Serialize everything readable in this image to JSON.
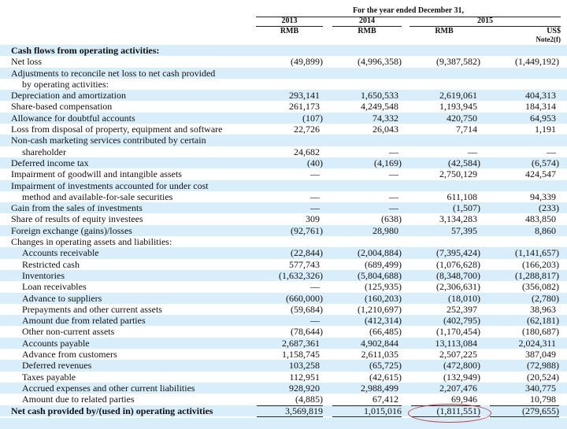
{
  "header": {
    "period": "For the year ended December 31,",
    "years": [
      "2013",
      "2014",
      "2015"
    ],
    "currencies": [
      "RMB",
      "RMB",
      "RMB",
      "US$"
    ],
    "note": "Note2(f)"
  },
  "rows": [
    {
      "label": "Cash flows from operating activities:",
      "bold": true,
      "values": []
    },
    {
      "label": "Net loss",
      "values": [
        "(49,899)",
        "(4,996,358)",
        "(9,387,582)",
        "(1,449,192)"
      ]
    },
    {
      "label": "Adjustments to reconcile net loss to net cash provided",
      "values": []
    },
    {
      "label": "by operating activities:",
      "indent": true,
      "cont": true,
      "values": []
    },
    {
      "label": "Depreciation and amortization",
      "values": [
        "293,141",
        "1,650,533",
        "2,619,061",
        "404,313"
      ]
    },
    {
      "label": "Share-based compensation",
      "values": [
        "261,173",
        "4,249,548",
        "1,193,945",
        "184,314"
      ]
    },
    {
      "label": "Allowance for doubtful accounts",
      "values": [
        "(107)",
        "74,332",
        "420,750",
        "64,953"
      ]
    },
    {
      "label": "Loss from disposal of property, equipment and software",
      "values": [
        "22,726",
        "26,043",
        "7,714",
        "1,191"
      ]
    },
    {
      "label": "Non-cash marketing services contributed by certain",
      "values": []
    },
    {
      "label": "shareholder",
      "indent": true,
      "cont": true,
      "values": [
        "24,682",
        "—",
        "—",
        "—"
      ]
    },
    {
      "label": "Deferred income tax",
      "values": [
        "(40)",
        "(4,169)",
        "(42,584)",
        "(6,574)"
      ]
    },
    {
      "label": "Impairment of goodwill and intangible assets",
      "values": [
        "—",
        "—",
        "2,750,129",
        "424,547"
      ]
    },
    {
      "label": "Impairment of investments accounted for under cost",
      "values": []
    },
    {
      "label": "method and available-for-sale securities",
      "indent": true,
      "cont": true,
      "values": [
        "—",
        "—",
        "611,108",
        "94,339"
      ]
    },
    {
      "label": "Gain from the sales of investments",
      "values": [
        "—",
        "—",
        "(1,507)",
        "(233)"
      ]
    },
    {
      "label": "Share of results of equity investees",
      "values": [
        "309",
        "(638)",
        "3,134,283",
        "483,850"
      ]
    },
    {
      "label": "Foreign exchange (gains)/losses",
      "values": [
        "(92,761)",
        "28,980",
        "57,395",
        "8,860"
      ]
    },
    {
      "label": "Changes in operating assets and liabilities:",
      "values": []
    },
    {
      "label": "Accounts receivable",
      "indent": true,
      "values": [
        "(22,844)",
        "(2,004,884)",
        "(7,395,424)",
        "(1,141,657)"
      ]
    },
    {
      "label": "Restricted cash",
      "indent": true,
      "values": [
        "577,743",
        "(689,499)",
        "(1,076,628)",
        "(166,203)"
      ]
    },
    {
      "label": "Inventories",
      "indent": true,
      "values": [
        "(1,632,326)",
        "(5,804,688)",
        "(8,348,700)",
        "(1,288,817)"
      ]
    },
    {
      "label": "Loan receivables",
      "indent": true,
      "values": [
        "—",
        "(125,935)",
        "(2,306,631)",
        "(356,082)"
      ]
    },
    {
      "label": "Advance to suppliers",
      "indent": true,
      "values": [
        "(660,000)",
        "(160,203)",
        "(18,010)",
        "(2,780)"
      ]
    },
    {
      "label": "Prepayments and other current assets",
      "indent": true,
      "values": [
        "(59,684)",
        "(1,210,697)",
        "252,397",
        "38,963"
      ]
    },
    {
      "label": "Amount due from related parties",
      "indent": true,
      "values": [
        "—",
        "(412,314)",
        "(402,795)",
        "(62,181)"
      ]
    },
    {
      "label": "Other non-current assets",
      "indent": true,
      "values": [
        "(78,644)",
        "(66,485)",
        "(1,170,454)",
        "(180,687)"
      ]
    },
    {
      "label": "Accounts payable",
      "indent": true,
      "values": [
        "2,687,361",
        "4,902,844",
        "13,113,084",
        "2,024,311"
      ]
    },
    {
      "label": "Advance from customers",
      "indent": true,
      "values": [
        "1,158,745",
        "2,611,035",
        "2,507,225",
        "387,049"
      ]
    },
    {
      "label": "Deferred revenues",
      "indent": true,
      "values": [
        "103,258",
        "(65,725)",
        "(472,800)",
        "(72,988)"
      ]
    },
    {
      "label": "Taxes payable",
      "indent": true,
      "values": [
        "112,951",
        "(42,615)",
        "(132,949)",
        "(20,524)"
      ]
    },
    {
      "label": "Accrued expenses and other current liabilities",
      "indent": true,
      "values": [
        "928,920",
        "2,988,499",
        "2,207,476",
        "340,775"
      ]
    },
    {
      "label": "Amount due to related parties",
      "indent": true,
      "values": [
        "(4,885)",
        "67,412",
        "69,946",
        "10,798"
      ]
    },
    {
      "label": "Net cash provided by/(used in) operating activities",
      "bold": true,
      "total": true,
      "values": [
        "3,569,819",
        "1,015,016",
        "(1,811,551)",
        "(279,655)"
      ]
    }
  ],
  "annotation_color": "#c0404a"
}
